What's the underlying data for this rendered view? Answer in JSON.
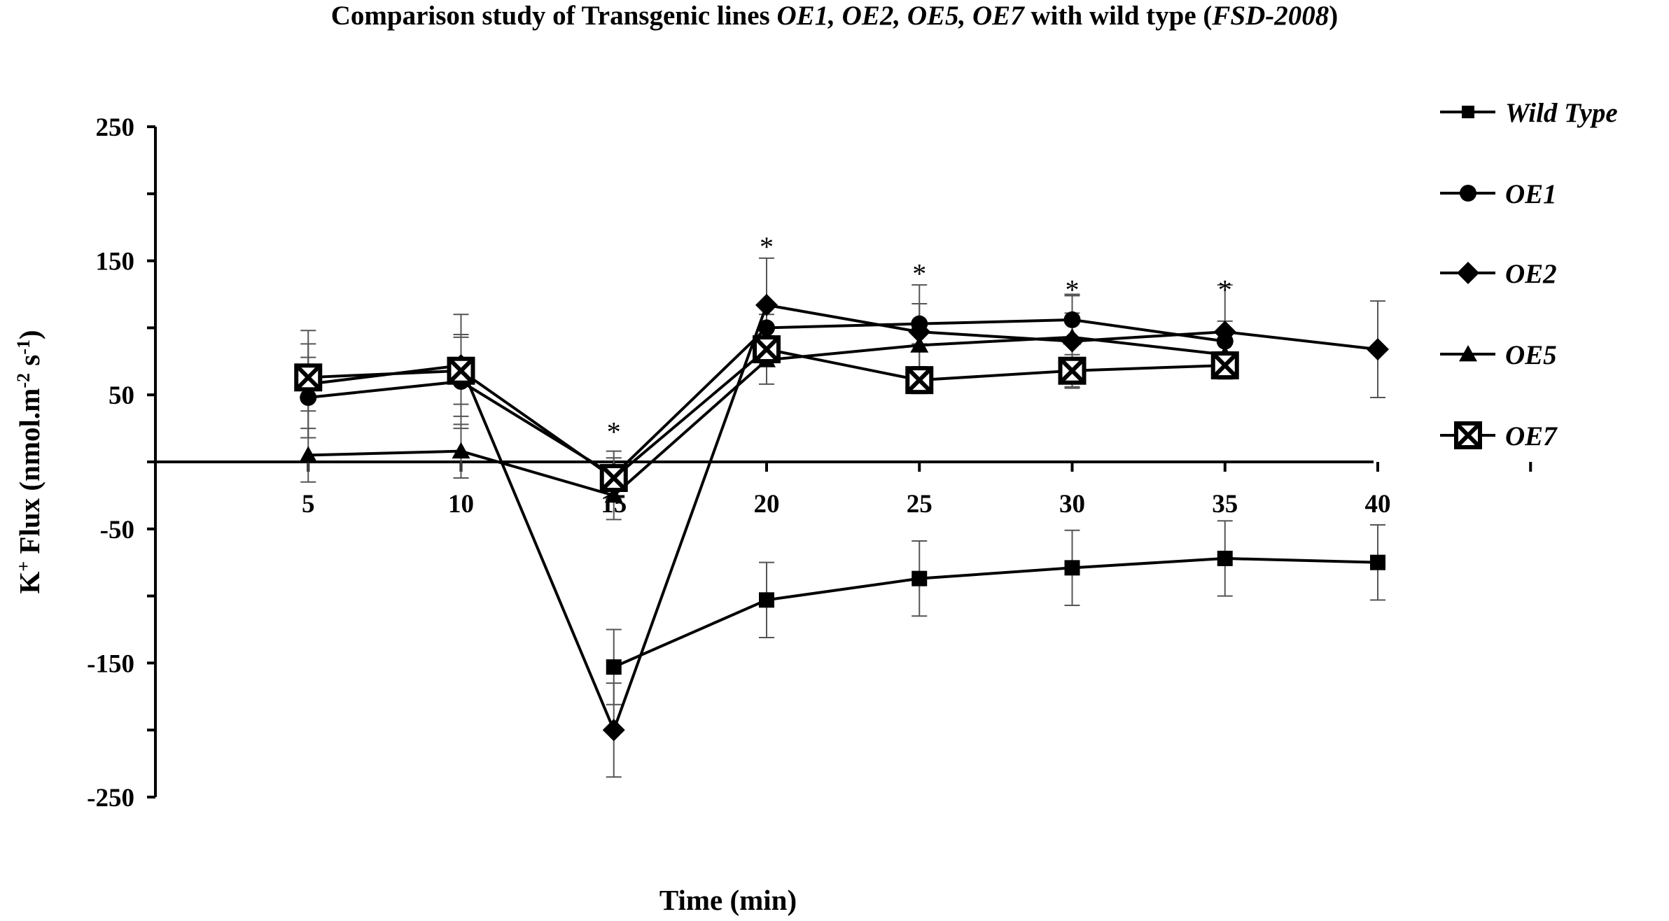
{
  "chart_data": {
    "type": "line",
    "title": {
      "prefix": "Comparison study of Transgenic lines ",
      "lines": "OE1, OE2, OE5, OE7",
      "middle": " with wild type (",
      "cultivar": "FSD-2008",
      "suffix": ")"
    },
    "xlabel": "Time (min)",
    "ylabel": {
      "pre": "K",
      "pre_sup": "+",
      "main": " Flux (nmol.m",
      "sup1": "-2",
      "mid": " s",
      "sup2": "-1",
      "end": ")"
    },
    "x": [
      5,
      10,
      15,
      20,
      25,
      30,
      35,
      40
    ],
    "xlim": [
      0,
      45
    ],
    "ylim": [
      -250,
      250
    ],
    "yticks": [
      -250,
      -150,
      -50,
      50,
      150,
      250
    ],
    "xtick_labels": [
      "5",
      "10",
      "15",
      "20",
      "25",
      "30",
      "35",
      "40"
    ],
    "ytick_labels": [
      "-250",
      "-150",
      "-50",
      "50",
      "150",
      "250"
    ],
    "series": [
      {
        "name": "Wild Type",
        "marker": "square",
        "x": [
          15,
          20,
          25,
          30,
          35,
          40
        ],
        "values": [
          -153,
          -103,
          -87,
          -79,
          -72,
          -75
        ],
        "errors": [
          28,
          28,
          28,
          28,
          28,
          28
        ]
      },
      {
        "name": "OE1",
        "marker": "circle",
        "x": [
          5,
          10,
          15,
          20,
          25,
          30,
          35
        ],
        "values": [
          48,
          60,
          -10,
          100,
          103,
          106,
          90
        ],
        "errors": [
          30,
          35,
          18,
          10,
          15,
          18,
          15
        ]
      },
      {
        "name": "OE2",
        "marker": "diamond",
        "x": [
          5,
          10,
          15,
          20,
          25,
          30,
          35,
          40
        ],
        "values": [
          58,
          72,
          -200,
          117,
          97,
          90,
          97,
          84
        ],
        "errors": [
          40,
          38,
          35,
          35,
          35,
          35,
          35,
          36
        ]
      },
      {
        "name": "OE5",
        "marker": "triangle",
        "x": [
          5,
          10,
          15,
          20,
          25,
          30,
          35
        ],
        "values": [
          5,
          8,
          -25,
          76,
          87,
          93,
          80
        ],
        "errors": [
          20,
          20,
          18,
          18,
          18,
          18,
          18
        ]
      },
      {
        "name": "OE7",
        "marker": "boxx",
        "x": [
          5,
          10,
          15,
          20,
          25,
          30,
          35
        ],
        "values": [
          63,
          68,
          -12,
          84,
          61,
          68,
          72
        ],
        "errors": [
          25,
          25,
          15,
          10,
          10,
          12,
          10
        ]
      }
    ],
    "significance": {
      "label": "*",
      "x": [
        15,
        20,
        25,
        30,
        35
      ],
      "y": [
        30,
        168,
        148,
        136,
        136
      ]
    },
    "legend_position": "right"
  }
}
